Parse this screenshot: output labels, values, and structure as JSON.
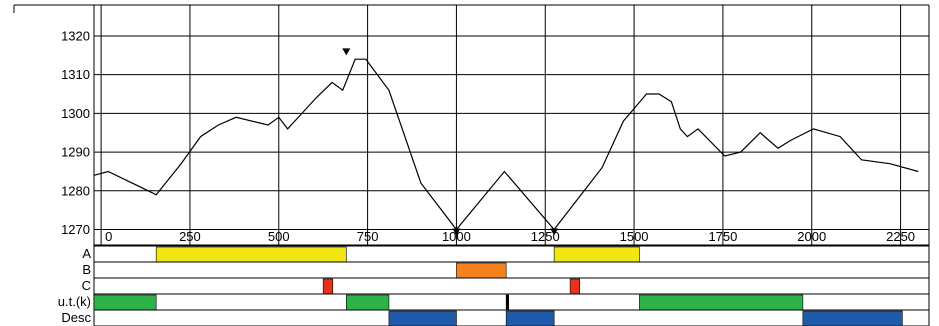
{
  "chart_data": {
    "type": "line",
    "title": "",
    "xlabel": "",
    "ylabel": "",
    "xlim": [
      -20,
      2330
    ],
    "ylim": [
      1266,
      1328
    ],
    "x_ticks": [
      0,
      250,
      500,
      750,
      1000,
      1250,
      1500,
      1750,
      2000,
      2250
    ],
    "y_ticks": [
      1270,
      1280,
      1290,
      1300,
      1310,
      1320
    ],
    "grid": true,
    "series": [
      {
        "color": "#000000",
        "points": [
          [
            -20,
            1284
          ],
          [
            20,
            1285
          ],
          [
            155,
            1279
          ],
          [
            225,
            1287
          ],
          [
            280,
            1294
          ],
          [
            330,
            1297
          ],
          [
            380,
            1299
          ],
          [
            470,
            1297
          ],
          [
            500,
            1299
          ],
          [
            525,
            1296
          ],
          [
            565,
            1300
          ],
          [
            605,
            1304
          ],
          [
            650,
            1308
          ],
          [
            680,
            1306
          ],
          [
            715,
            1314
          ],
          [
            745,
            1314
          ],
          [
            810,
            1306
          ],
          [
            900,
            1282
          ],
          [
            1000,
            1270
          ],
          [
            1135,
            1285
          ],
          [
            1275,
            1270
          ],
          [
            1410,
            1286
          ],
          [
            1470,
            1298
          ],
          [
            1535,
            1305
          ],
          [
            1570,
            1305
          ],
          [
            1605,
            1303
          ],
          [
            1630,
            1296
          ],
          [
            1650,
            1294
          ],
          [
            1680,
            1296
          ],
          [
            1755,
            1289
          ],
          [
            1800,
            1290
          ],
          [
            1855,
            1295
          ],
          [
            1905,
            1291
          ],
          [
            1940,
            1293
          ],
          [
            2005,
            1296
          ],
          [
            2080,
            1294
          ],
          [
            2140,
            1288
          ],
          [
            2220,
            1287
          ],
          [
            2300,
            1285
          ]
        ]
      }
    ],
    "markers": [
      {
        "x": 690,
        "y": 1315,
        "shape": "triangle-down"
      },
      {
        "x": 1000,
        "y": 1270,
        "shape": "triangle-down"
      },
      {
        "x": 1275,
        "y": 1270,
        "shape": "triangle-down"
      }
    ],
    "tracks": [
      {
        "label": "A",
        "segments": [
          {
            "start": 155,
            "end": 690,
            "color": "#f0e614"
          },
          {
            "start": 1275,
            "end": 1515,
            "color": "#f0e614"
          }
        ]
      },
      {
        "label": "B",
        "segments": [
          {
            "start": 1000,
            "end": 1140,
            "color": "#f5821e"
          }
        ]
      },
      {
        "label": "C",
        "segments": [
          {
            "start": 625,
            "end": 652,
            "color": "#e8321e"
          },
          {
            "start": 1320,
            "end": 1347,
            "color": "#e8321e"
          }
        ]
      },
      {
        "label": "u.t.(k)",
        "segments": [
          {
            "start": -20,
            "end": 155,
            "color": "#2db34a"
          },
          {
            "start": 690,
            "end": 810,
            "color": "#2db34a"
          },
          {
            "start": 1140,
            "end": 1147,
            "color": "#000000"
          },
          {
            "start": 1515,
            "end": 1975,
            "color": "#2db34a"
          }
        ]
      },
      {
        "label": "Desc",
        "segments": [
          {
            "start": 810,
            "end": 1000,
            "color": "#1f5aab"
          },
          {
            "start": 1140,
            "end": 1275,
            "color": "#1f5aab"
          },
          {
            "start": 1975,
            "end": 2255,
            "color": "#1f5aab"
          }
        ]
      }
    ]
  }
}
